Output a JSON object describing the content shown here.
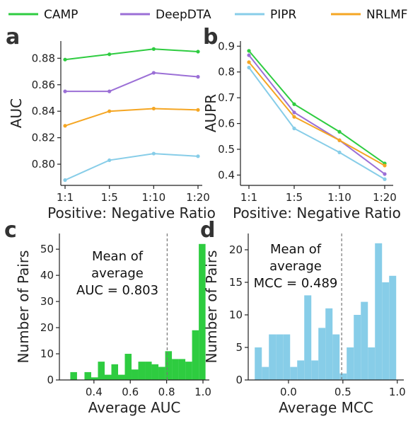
{
  "legend": [
    {
      "name": "CAMP",
      "color": "#2ecc40"
    },
    {
      "name": "DeepDTA",
      "color": "#9b6fd6"
    },
    {
      "name": "PIPR",
      "color": "#87cde8"
    },
    {
      "name": "NRLMF",
      "color": "#f5a623"
    }
  ],
  "panels": {
    "a": "a",
    "b": "b",
    "c": "c",
    "d": "d"
  },
  "chart_data": [
    {
      "type": "line",
      "panel": "a",
      "categories": [
        "1:1",
        "1:5",
        "1:10",
        "1:20"
      ],
      "xlabel": "Positive: Negative Ratio",
      "ylabel": "AUC",
      "ylim": [
        0.784,
        0.893
      ],
      "yticks": [
        "0.80",
        "0.82",
        "0.84",
        "0.86",
        "0.88"
      ],
      "series": [
        {
          "name": "CAMP",
          "color": "#2ecc40",
          "values": [
            0.879,
            0.883,
            0.887,
            0.885
          ]
        },
        {
          "name": "DeepDTA",
          "color": "#9b6fd6",
          "values": [
            0.855,
            0.855,
            0.869,
            0.866
          ]
        },
        {
          "name": "PIPR",
          "color": "#87cde8",
          "values": [
            0.788,
            0.803,
            0.808,
            0.806
          ]
        },
        {
          "name": "NRLMF",
          "color": "#f5a623",
          "values": [
            0.829,
            0.84,
            0.842,
            0.841
          ]
        }
      ]
    },
    {
      "type": "line",
      "panel": "b",
      "categories": [
        "1:1",
        "1:5",
        "1:10",
        "1:20"
      ],
      "xlabel": "Positive: Negative Ratio",
      "ylabel": "AUPR",
      "ylim": [
        0.36,
        0.92
      ],
      "yticks": [
        "0.4",
        "0.5",
        "0.6",
        "0.7",
        "0.8",
        "0.9"
      ],
      "series": [
        {
          "name": "CAMP",
          "color": "#2ecc40",
          "values": [
            0.882,
            0.675,
            0.568,
            0.445
          ]
        },
        {
          "name": "DeepDTA",
          "color": "#9b6fd6",
          "values": [
            0.865,
            0.643,
            0.535,
            0.404
          ]
        },
        {
          "name": "PIPR",
          "color": "#87cde8",
          "values": [
            0.817,
            0.581,
            0.488,
            0.384
          ]
        },
        {
          "name": "NRLMF",
          "color": "#f5a623",
          "values": [
            0.838,
            0.626,
            0.535,
            0.437
          ]
        }
      ]
    },
    {
      "type": "bar",
      "panel": "c",
      "xlabel": "Average AUC",
      "ylabel": "Number of  Pairs",
      "xlim": [
        0.21,
        1.035
      ],
      "ylim": [
        0,
        56
      ],
      "xticks": [
        "0.4",
        "0.6",
        "0.8",
        "1.0"
      ],
      "yticks": [
        "0",
        "10",
        "20",
        "30",
        "40",
        "50"
      ],
      "color": "#2ecc40",
      "bin_width": 0.037,
      "bins": [
        {
          "x": 0.27,
          "value": 3
        },
        {
          "x": 0.348,
          "value": 3
        },
        {
          "x": 0.385,
          "value": 1
        },
        {
          "x": 0.422,
          "value": 7
        },
        {
          "x": 0.459,
          "value": 2
        },
        {
          "x": 0.496,
          "value": 6
        },
        {
          "x": 0.533,
          "value": 2
        },
        {
          "x": 0.57,
          "value": 10
        },
        {
          "x": 0.607,
          "value": 4
        },
        {
          "x": 0.644,
          "value": 7
        },
        {
          "x": 0.681,
          "value": 7
        },
        {
          "x": 0.718,
          "value": 6
        },
        {
          "x": 0.755,
          "value": 5
        },
        {
          "x": 0.792,
          "value": 11
        },
        {
          "x": 0.829,
          "value": 8
        },
        {
          "x": 0.866,
          "value": 8
        },
        {
          "x": 0.903,
          "value": 7
        },
        {
          "x": 0.94,
          "value": 19
        },
        {
          "x": 0.977,
          "value": 52
        }
      ],
      "mean_line": 0.803,
      "annotation": [
        "Mean of",
        "average",
        "AUC = 0.803"
      ]
    },
    {
      "type": "bar",
      "panel": "d",
      "xlabel": "Average MCC",
      "ylabel": "Number of  Pairs",
      "xlim": [
        -0.37,
        1.06
      ],
      "ylim": [
        0,
        22.5
      ],
      "xticks": [
        "0.0",
        "0.5",
        "1.0"
      ],
      "yticks": [
        "0",
        "5",
        "10",
        "15",
        "20"
      ],
      "color": "#87cde8",
      "bin_width": 0.065,
      "bins": [
        {
          "x": -0.31,
          "value": 5
        },
        {
          "x": -0.245,
          "value": 2
        },
        {
          "x": -0.18,
          "value": 7
        },
        {
          "x": -0.115,
          "value": 7
        },
        {
          "x": -0.05,
          "value": 7
        },
        {
          "x": 0.015,
          "value": 2
        },
        {
          "x": 0.08,
          "value": 3
        },
        {
          "x": 0.145,
          "value": 13
        },
        {
          "x": 0.21,
          "value": 3
        },
        {
          "x": 0.275,
          "value": 8
        },
        {
          "x": 0.34,
          "value": 11
        },
        {
          "x": 0.405,
          "value": 7
        },
        {
          "x": 0.47,
          "value": 1
        },
        {
          "x": 0.535,
          "value": 5
        },
        {
          "x": 0.6,
          "value": 10
        },
        {
          "x": 0.665,
          "value": 12
        },
        {
          "x": 0.73,
          "value": 5
        },
        {
          "x": 0.795,
          "value": 21
        },
        {
          "x": 0.86,
          "value": 15
        },
        {
          "x": 0.925,
          "value": 16
        }
      ],
      "mean_line": 0.489,
      "annotation": [
        "Mean of",
        "average",
        "MCC = 0.489"
      ]
    }
  ]
}
